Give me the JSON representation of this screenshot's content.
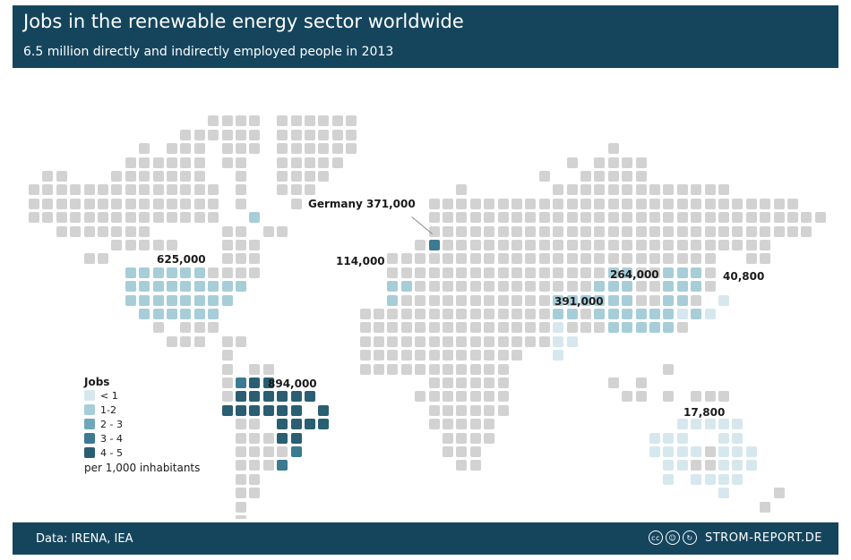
{
  "header": {
    "title": "Jobs in the renewable energy sector worldwide",
    "subtitle": "6.5 million directly and indirectly employed people in 2013"
  },
  "colors": {
    "header_bg": "#15455d",
    "land": "#d2d2d2",
    "level_1": "#d6e8ee",
    "level_2": "#a7cdd8",
    "level_3": "#6fa6ba",
    "level_4": "#3b7a90",
    "level_5": "#2a5e72"
  },
  "labels": {
    "north_america": "625,000",
    "germany": "Germany 371,000",
    "europe": "114,000",
    "china": "264,000",
    "japan": "40,800",
    "india": "391,000",
    "brazil": "894,000",
    "australia": "17,800"
  },
  "legend": {
    "title": "Jobs",
    "items": [
      {
        "label": "< 1",
        "color": "#d6e8ee"
      },
      {
        "label": "1-2",
        "color": "#a7cdd8"
      },
      {
        "label": "2 - 3",
        "color": "#6fa6ba"
      },
      {
        "label": "3 - 4",
        "color": "#3b7a90"
      },
      {
        "label": "4 - 5",
        "color": "#2a5e72"
      }
    ],
    "note": "per 1,000 inhabitants"
  },
  "footer": {
    "source": "Data: IRENA, IEA",
    "cc_icons": [
      "cc",
      "by",
      "sa"
    ],
    "brand": "STROM-REPORT.DE"
  }
}
